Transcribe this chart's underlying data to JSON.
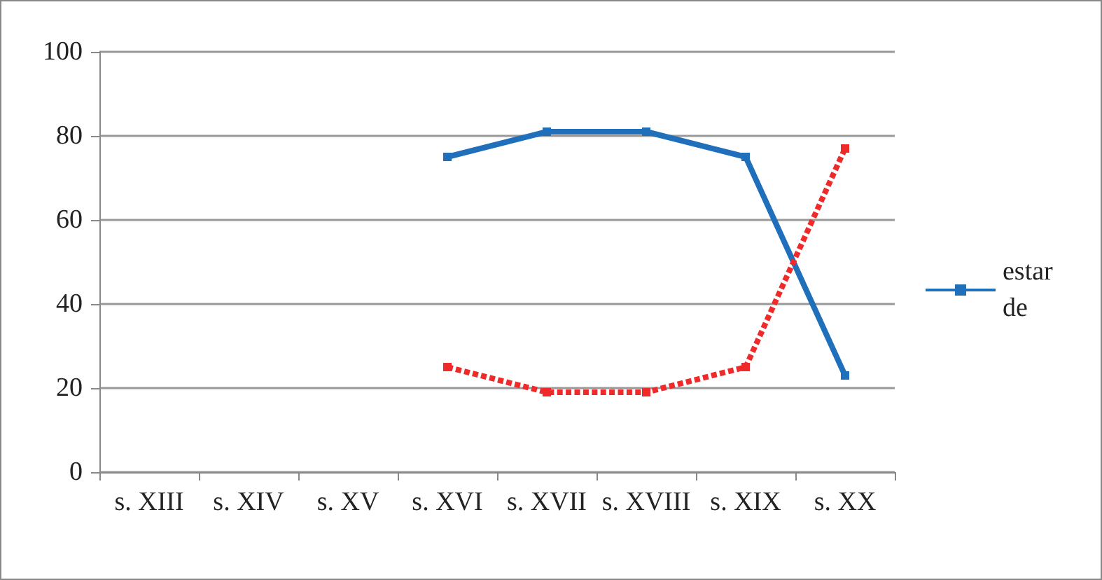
{
  "chart_data": {
    "type": "line",
    "categories": [
      "s. XIII",
      "s. XIV",
      "s. XV",
      "s. XVI",
      "s. XVII",
      "s. XVIII",
      "s. XIX",
      "s. XX"
    ],
    "series": [
      {
        "name": "estar de",
        "color": "#1f6fba",
        "line_style": "solid",
        "values": [
          null,
          null,
          null,
          75,
          81,
          81,
          75,
          23
        ]
      },
      {
        "color": "#ee2a2a",
        "line_style": "dashed",
        "values": [
          null,
          null,
          null,
          25,
          19,
          19,
          25,
          77
        ]
      }
    ],
    "ylim": [
      0,
      100
    ],
    "yticks": [
      0,
      20,
      40,
      60,
      80,
      100
    ],
    "grid": "y",
    "legend": "right",
    "marker": "square"
  }
}
